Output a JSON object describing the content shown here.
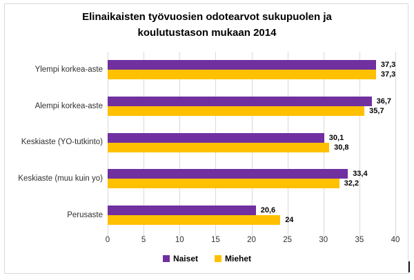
{
  "window": {
    "background": "#ffffff",
    "border_color": "#D9D9D9"
  },
  "chart_data": {
    "type": "bar",
    "orientation": "horizontal",
    "title": "Elinaikaisten työvuosien odotearvot sukupuolen ja koulutustason mukaan 2014",
    "categories": [
      "Ylempi korkea-aste",
      "Alempi korkea-aste",
      "Keskiaste (YO-tutkinto)",
      "Keskiaste (muu kuin yo)",
      "Perusaste"
    ],
    "series": [
      {
        "name": "Naiset",
        "color": "#7030A0",
        "values": [
          37.3,
          36.7,
          30.1,
          33.4,
          20.6
        ],
        "value_labels": [
          "37,3",
          "36,7",
          "30,1",
          "33,4",
          "20,6"
        ]
      },
      {
        "name": "Miehet",
        "color": "#FFC000",
        "values": [
          37.3,
          35.7,
          30.8,
          32.2,
          24
        ],
        "value_labels": [
          "37,3",
          "35,7",
          "30,8",
          "32,2",
          "24"
        ]
      }
    ],
    "xlim": [
      0,
      40
    ],
    "xticks": [
      "0",
      "5",
      "10",
      "15",
      "20",
      "25",
      "30",
      "35",
      "40"
    ],
    "grid": true,
    "gridline_color": "#D9D9D9",
    "legend_position": "bottom",
    "axis_text_color": "#303030",
    "data_label_color": "#000000"
  }
}
